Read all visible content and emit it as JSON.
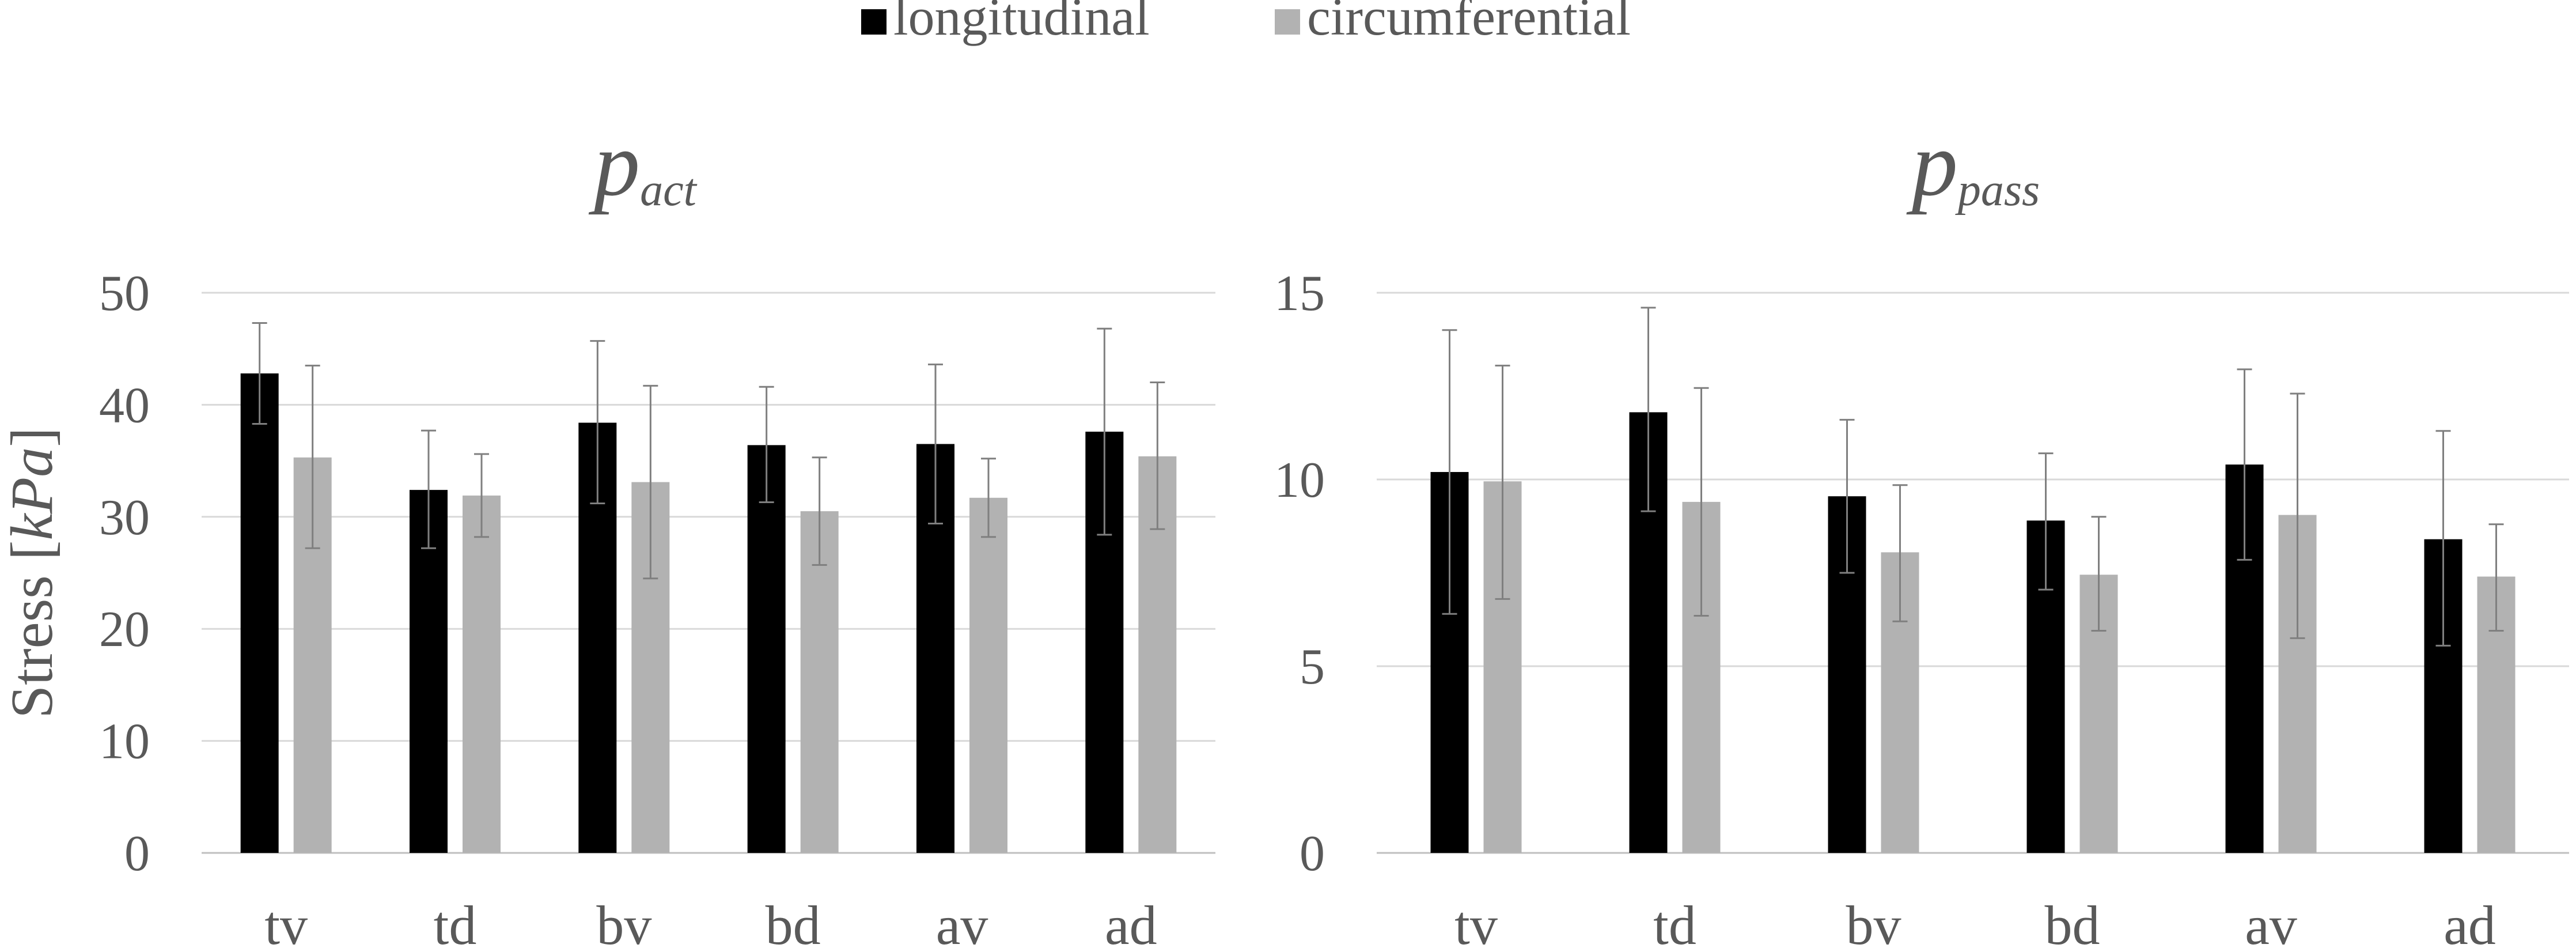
{
  "legend": {
    "position": "top-center",
    "items": [
      {
        "label": "longitudinal",
        "color": "#000000"
      },
      {
        "label": "circumferential",
        "color": "#b2b2b2"
      }
    ]
  },
  "colors": {
    "text": "#595959",
    "grid": "#d9d9d9",
    "axis": "#bfbfbf",
    "error_bar": "#7f7f7f"
  },
  "chart_data": [
    {
      "type": "bar",
      "title": {
        "symbol": "p",
        "subscript": "act"
      },
      "xlabel": "",
      "ylabel": {
        "prefix": "Stress [",
        "unit": "kPa",
        "suffix": "]"
      },
      "ylim": [
        0,
        50
      ],
      "yticks": [
        0,
        10,
        20,
        30,
        40,
        50
      ],
      "grid": true,
      "categories": [
        "tv",
        "td",
        "bv",
        "bd",
        "av",
        "ad"
      ],
      "series": [
        {
          "name": "longitudinal",
          "values": [
            42.8,
            32.4,
            38.4,
            36.4,
            36.5,
            37.6
          ],
          "err_low": [
            38.3,
            27.2,
            31.2,
            31.3,
            29.4,
            28.4
          ],
          "err_high": [
            47.3,
            37.7,
            45.7,
            41.6,
            43.6,
            46.8
          ]
        },
        {
          "name": "circumferential",
          "values": [
            35.3,
            31.9,
            33.1,
            30.5,
            31.7,
            35.4
          ],
          "err_low": [
            27.2,
            28.2,
            24.5,
            25.7,
            28.2,
            28.9
          ],
          "err_high": [
            43.5,
            35.6,
            41.7,
            35.3,
            35.2,
            42.0
          ]
        }
      ]
    },
    {
      "type": "bar",
      "title": {
        "symbol": "p",
        "subscript": "pass"
      },
      "xlabel": "",
      "ylabel": null,
      "ylim": [
        0,
        15
      ],
      "yticks": [
        0,
        5,
        10,
        15
      ],
      "grid": true,
      "categories": [
        "tv",
        "td",
        "bv",
        "bd",
        "av",
        "ad"
      ],
      "series": [
        {
          "name": "longitudinal",
          "values": [
            10.2,
            11.8,
            9.55,
            8.9,
            10.4,
            8.4
          ],
          "err_low": [
            6.4,
            9.15,
            7.5,
            7.05,
            7.85,
            5.55
          ],
          "err_high": [
            14.0,
            14.6,
            11.6,
            10.7,
            12.95,
            11.3
          ]
        },
        {
          "name": "circumferential",
          "values": [
            9.95,
            9.4,
            8.05,
            7.45,
            9.05,
            7.4
          ],
          "err_low": [
            6.8,
            6.35,
            6.2,
            5.95,
            5.75,
            5.95
          ],
          "err_high": [
            13.05,
            12.45,
            9.85,
            9.0,
            12.3,
            8.8
          ]
        }
      ]
    }
  ]
}
